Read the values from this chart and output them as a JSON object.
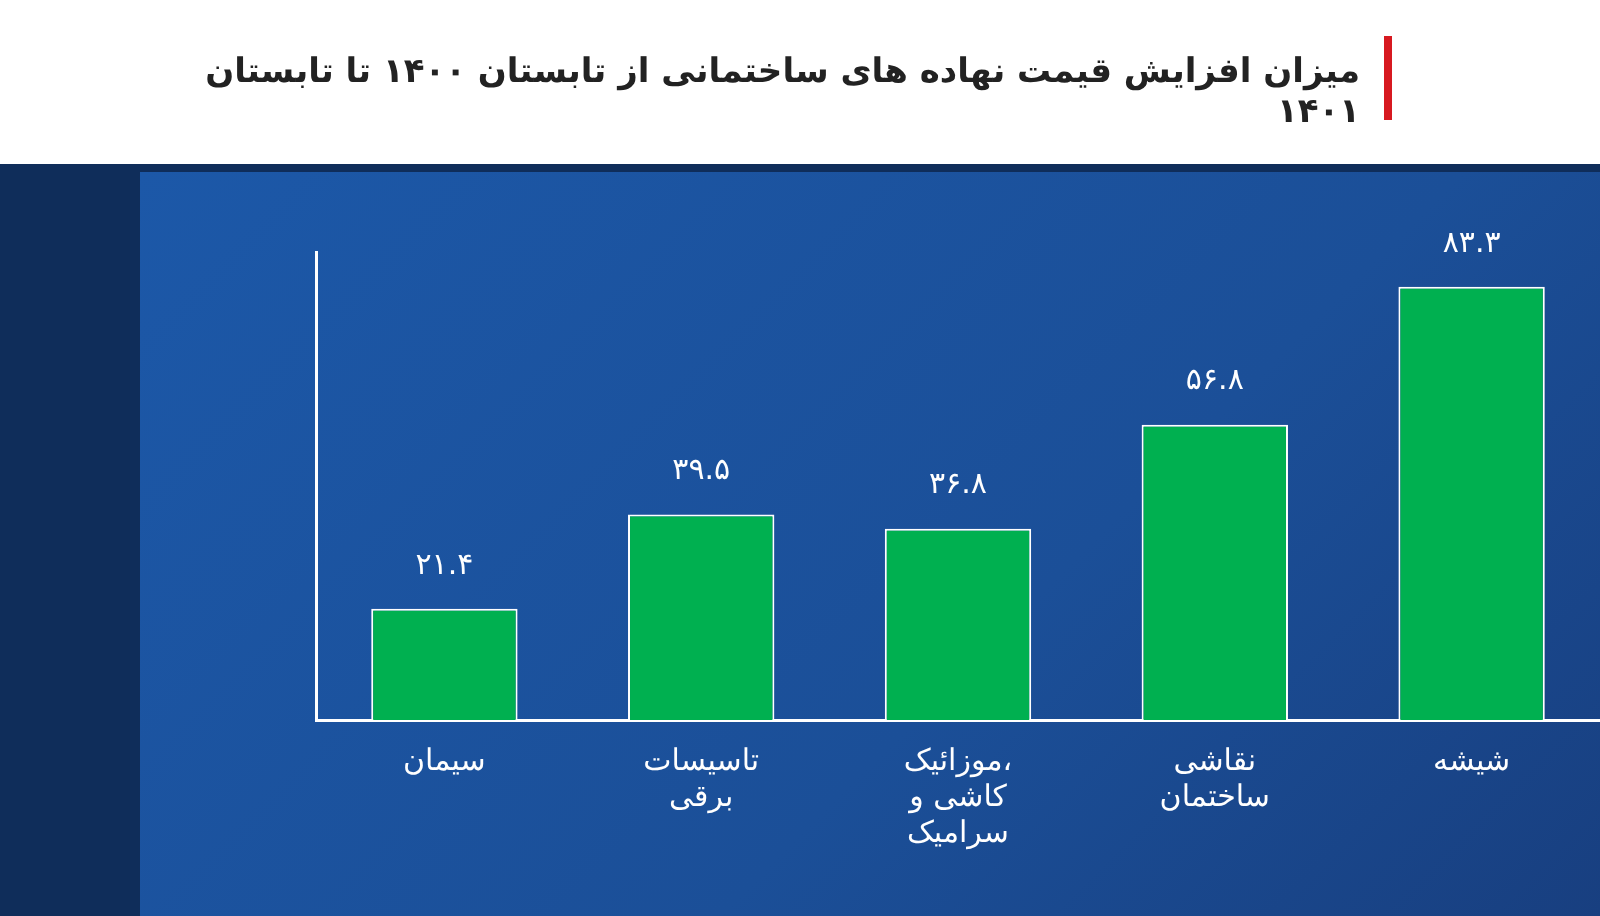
{
  "chart_data": {
    "type": "bar",
    "title": "میزان افزایش قیمت نهاده های ساختمانی از تابستان ۱۴۰۰ تا تابستان ۱۴۰۱",
    "categories": [
      "سیمان",
      "تاسیسات برقی",
      "موزائیک، کاشی و سرامیک",
      "نقاشی ساختمان",
      "شیشه"
    ],
    "values": [
      21.4,
      39.5,
      36.8,
      56.8,
      83.3
    ],
    "value_labels": [
      "۲۱.۴",
      "۳۹.۵",
      "۳۶.۸",
      "۵۶.۸",
      "۸۳.۳"
    ],
    "color": "#00b050",
    "grid": false,
    "legend": false
  }
}
